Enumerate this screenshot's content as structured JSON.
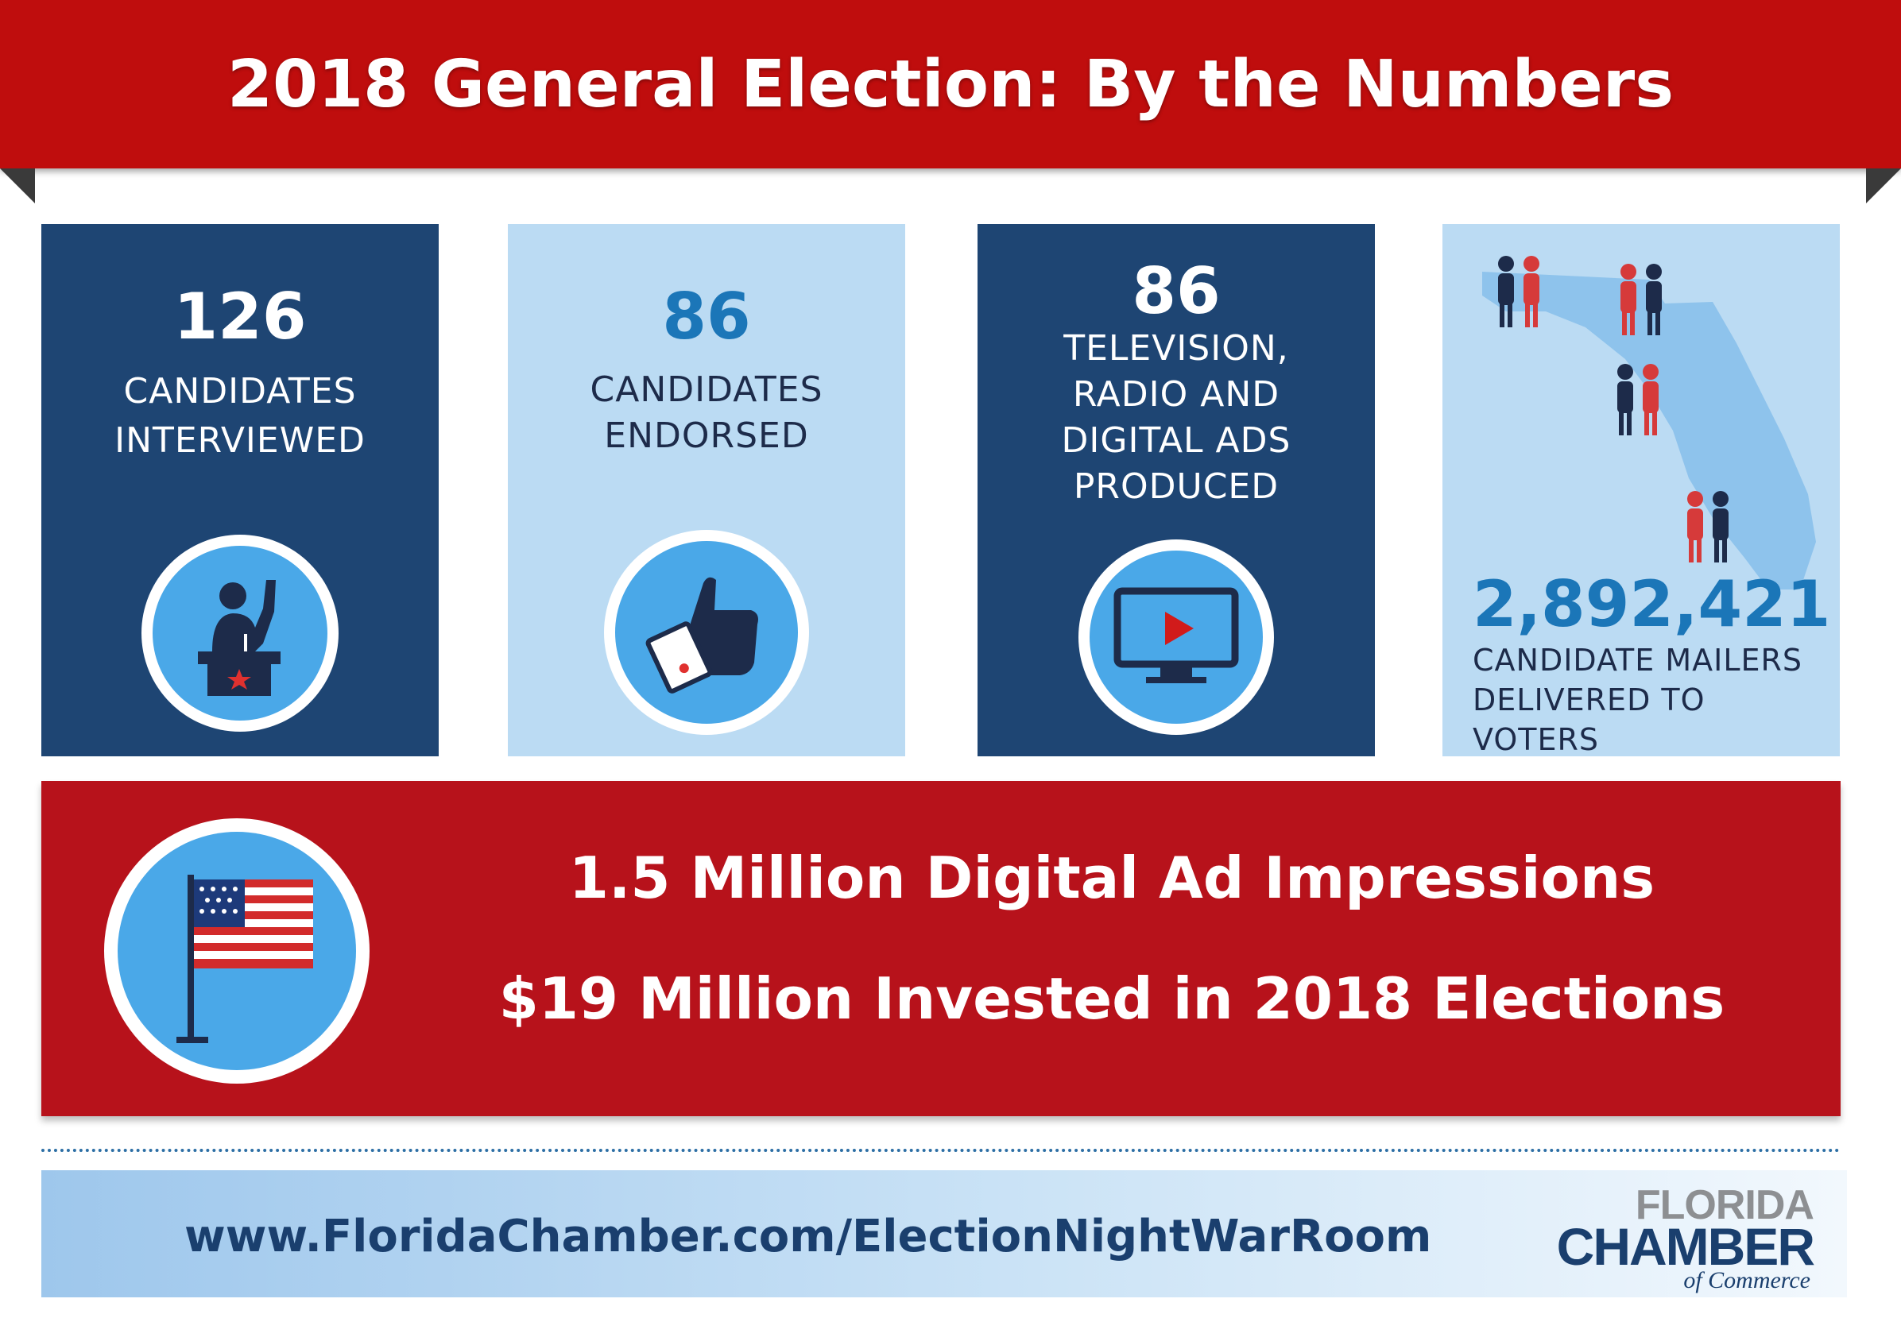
{
  "header": {
    "title": "2018 General Election: By the Numbers"
  },
  "colors": {
    "banner_red": "#bf0d0d",
    "band_red": "#b7121b",
    "navy": "#1e4573",
    "light_blue": "#bbdbf3",
    "accent_blue": "#1b76b8",
    "icon_blue": "#4aa8e8"
  },
  "stats": [
    {
      "number": "126",
      "label_lines": [
        "CANDIDATES",
        "INTERVIEWED"
      ],
      "icon": "podium-speaker-icon"
    },
    {
      "number": "86",
      "label_lines": [
        "CANDIDATES",
        "ENDORSED"
      ],
      "icon": "thumbs-up-icon"
    },
    {
      "number": "86",
      "label_lines": [
        "TELEVISION,",
        "RADIO AND",
        "DIGITAL ADS",
        "PRODUCED"
      ],
      "icon": "tv-play-icon"
    },
    {
      "number": "2,892,421",
      "label_lines": [
        "CANDIDATE MAILERS",
        "DELIVERED TO VOTERS"
      ],
      "icon": "florida-voters-map-icon"
    }
  ],
  "band": {
    "line1": "1.5 Million Digital Ad Impressions",
    "line2": "$19 Million Invested in 2018 Elections",
    "icon": "american-flag-icon"
  },
  "footer": {
    "url": "www.FloridaChamber.com/ElectionNightWarRoom",
    "logo": {
      "line1": "FLORIDA",
      "line2": "CHAMBER",
      "line3": "of Commerce"
    }
  }
}
